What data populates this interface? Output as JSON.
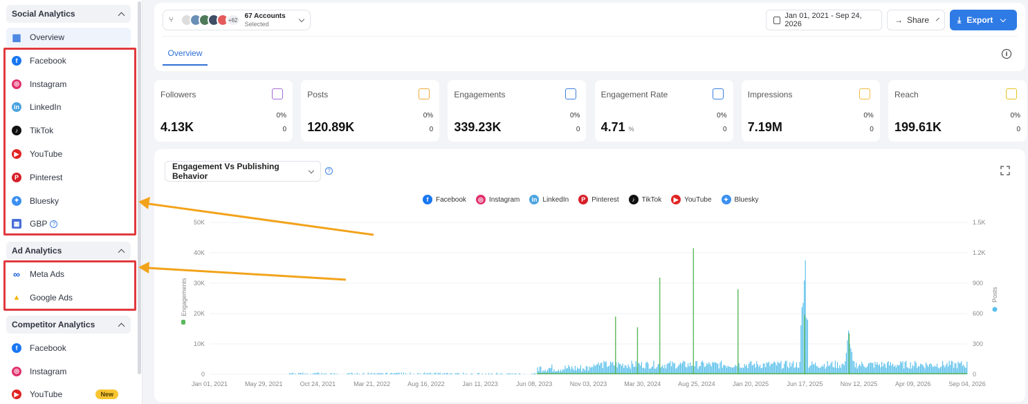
{
  "sidebar": {
    "social": {
      "title": "Social Analytics",
      "items": [
        {
          "label": "Overview",
          "icon": "grid-icon",
          "color": "#3b7de0"
        },
        {
          "label": "Facebook",
          "icon": "facebook-icon",
          "color": "#1877f2"
        },
        {
          "label": "Instagram",
          "icon": "instagram-icon",
          "color": "#e1306c"
        },
        {
          "label": "LinkedIn",
          "icon": "linkedin-icon",
          "color": "#4aa3e0"
        },
        {
          "label": "TikTok",
          "icon": "tiktok-icon",
          "color": "#111111"
        },
        {
          "label": "YouTube",
          "icon": "youtube-icon",
          "color": "#e02424"
        },
        {
          "label": "Pinterest",
          "icon": "pinterest-icon",
          "color": "#d71f28"
        },
        {
          "label": "Bluesky",
          "icon": "bluesky-icon",
          "color": "#3b8ff0"
        },
        {
          "label": "GBP",
          "icon": "gbp-icon",
          "color": "#4a6fd8"
        }
      ]
    },
    "ads": {
      "title": "Ad Analytics",
      "items": [
        {
          "label": "Meta Ads",
          "icon": "meta-icon",
          "color": "#1a5bd8"
        },
        {
          "label": "Google Ads",
          "icon": "google-ads-icon",
          "color": "#f4b400"
        }
      ]
    },
    "competitor": {
      "title": "Competitor Analytics",
      "items": [
        {
          "label": "Facebook",
          "icon": "facebook-icon",
          "color": "#1877f2"
        },
        {
          "label": "Instagram",
          "icon": "instagram-icon",
          "color": "#e1306c"
        },
        {
          "label": "YouTube",
          "icon": "youtube-icon",
          "color": "#e02424",
          "badge": "New"
        }
      ]
    }
  },
  "header": {
    "accounts_count": "67 Accounts",
    "accounts_sub": "Selected",
    "more_count": "+62",
    "date_range": "Jan 01, 2021 - Sep 24, 2026",
    "share_label": "Share",
    "export_label": "Export",
    "tab_label": "Overview"
  },
  "stats": [
    {
      "label": "Followers",
      "value": "4.13K",
      "pct": "0%",
      "change": "0",
      "icon": "followers-icon",
      "color": "#a26bd9"
    },
    {
      "label": "Posts",
      "value": "120.89K",
      "pct": "0%",
      "change": "0",
      "icon": "posts-icon",
      "color": "#f2a83b"
    },
    {
      "label": "Engagements",
      "value": "339.23K",
      "pct": "0%",
      "change": "0",
      "icon": "engagements-icon",
      "color": "#3b7de0"
    },
    {
      "label": "Engagement Rate",
      "value": "4.71",
      "unit": "%",
      "pct": "0%",
      "change": "0",
      "icon": "percent-icon",
      "color": "#3b7de0"
    },
    {
      "label": "Impressions",
      "value": "7.19M",
      "pct": "0%",
      "change": "0",
      "icon": "impressions-icon",
      "color": "#f2b93b"
    },
    {
      "label": "Reach",
      "value": "199.61K",
      "pct": "0%",
      "change": "0",
      "icon": "reach-icon",
      "color": "#e4c21a"
    }
  ],
  "chart_section": {
    "selector_label": "Engagement Vs Publishing Behavior",
    "legend": [
      {
        "label": "Facebook",
        "icon": "facebook-icon",
        "color": "#1877f2"
      },
      {
        "label": "Instagram",
        "icon": "instagram-icon",
        "color": "#e1306c"
      },
      {
        "label": "LinkedIn",
        "icon": "linkedin-icon",
        "color": "#4aa3e0"
      },
      {
        "label": "Pinterest",
        "icon": "pinterest-icon",
        "color": "#d71f28"
      },
      {
        "label": "TikTok",
        "icon": "tiktok-icon",
        "color": "#111111"
      },
      {
        "label": "YouTube",
        "icon": "youtube-icon",
        "color": "#e02424"
      },
      {
        "label": "Bluesky",
        "icon": "bluesky-icon",
        "color": "#3b8ff0"
      }
    ]
  },
  "chart_data": {
    "type": "bar",
    "xlabel": "",
    "ylabel": "Engagements",
    "y2label": "Posts",
    "ylim": [
      0,
      50000
    ],
    "y2lim": [
      0,
      1500
    ],
    "y_ticks": [
      "0",
      "10K",
      "20K",
      "30K",
      "40K",
      "50K"
    ],
    "y2_ticks": [
      "0",
      "300",
      "600",
      "900",
      "1.2K",
      "1.5K"
    ],
    "x_ticks": [
      "Jan 01, 2021",
      "May 29, 2021",
      "Oct 24, 2021",
      "Mar 21, 2022",
      "Aug 16, 2022",
      "Jan 11, 2023",
      "Jun 08, 2023",
      "Nov 03, 2023",
      "Mar 30, 2024",
      "Aug 25, 2024",
      "Jan 20, 2025",
      "Jun 17, 2025",
      "Nov 12, 2025",
      "Apr 09, 2026",
      "Sep 04, 2026"
    ],
    "series": [
      {
        "name": "Engagements",
        "color": "#5cb85c",
        "peaks": [
          {
            "date": "Jan 2024",
            "value": 19000
          },
          {
            "date": "Mar 2024",
            "value": 15500
          },
          {
            "date": "May 2024",
            "value": 31800
          },
          {
            "date": "Aug 2024",
            "value": 41500
          },
          {
            "date": "Dec 2024",
            "value": 28000
          },
          {
            "date": "Jun 2025",
            "value": 19500
          },
          {
            "date": "Oct 2025",
            "value": 13500
          }
        ]
      },
      {
        "name": "Posts",
        "color": "#5bc0eb",
        "peaks": [
          {
            "date": "Nov 2023",
            "value": 130
          },
          {
            "date": "Jun 2025",
            "value": 1450
          },
          {
            "date": "Oct 2025",
            "value": 520
          },
          {
            "date": "Sep 2026",
            "value": 140
          }
        ]
      }
    ]
  }
}
